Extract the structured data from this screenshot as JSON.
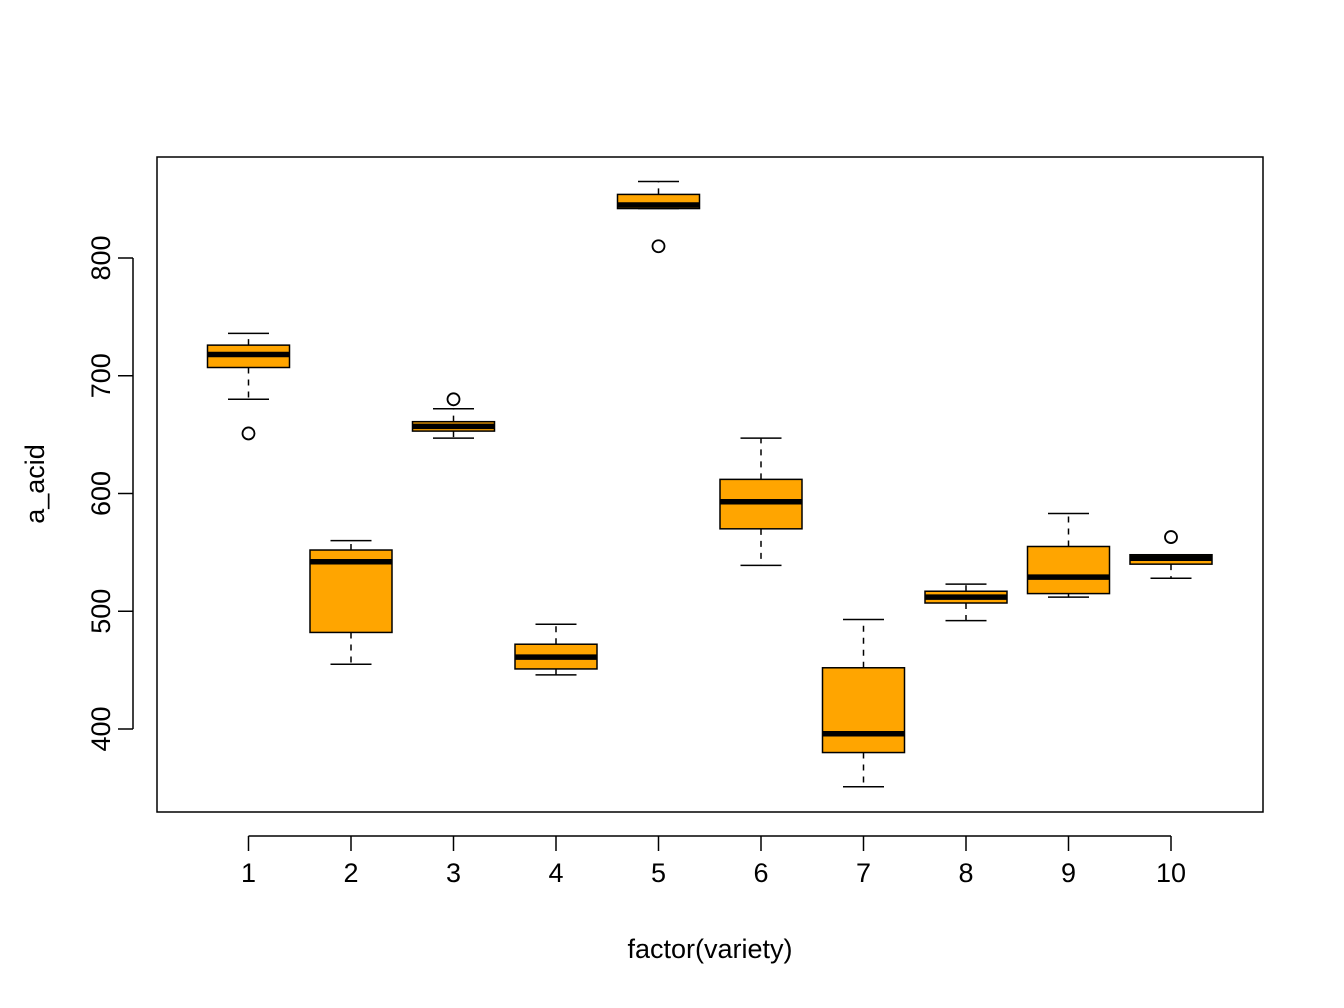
{
  "chart_data": {
    "type": "box",
    "title": "",
    "xlabel": "factor(variety)",
    "ylabel": "a_acid",
    "categories": [
      "1",
      "2",
      "3",
      "4",
      "5",
      "6",
      "7",
      "8",
      "9",
      "10"
    ],
    "yticks": [
      400,
      500,
      600,
      700,
      800
    ],
    "ylim": [
      330,
      885
    ],
    "fill_color": "#FFA500",
    "boxes": [
      {
        "category": "1",
        "whisker_low": 680,
        "q1": 707,
        "median": 718,
        "q3": 726,
        "whisker_high": 736,
        "outliers": [
          651
        ]
      },
      {
        "category": "2",
        "whisker_low": 455,
        "q1": 482,
        "median": 542,
        "q3": 552,
        "whisker_high": 560,
        "outliers": []
      },
      {
        "category": "3",
        "whisker_low": 647,
        "q1": 653,
        "median": 657,
        "q3": 661,
        "whisker_high": 672,
        "outliers": [
          680
        ]
      },
      {
        "category": "4",
        "whisker_low": 446,
        "q1": 451,
        "median": 461,
        "q3": 472,
        "whisker_high": 489,
        "outliers": []
      },
      {
        "category": "5",
        "whisker_low": 842,
        "q1": 842,
        "median": 845,
        "q3": 854,
        "whisker_high": 865,
        "outliers": [
          810
        ]
      },
      {
        "category": "6",
        "whisker_low": 539,
        "q1": 570,
        "median": 593,
        "q3": 612,
        "whisker_high": 647,
        "outliers": []
      },
      {
        "category": "7",
        "whisker_low": 351,
        "q1": 380,
        "median": 396,
        "q3": 452,
        "whisker_high": 493,
        "outliers": []
      },
      {
        "category": "8",
        "whisker_low": 492,
        "q1": 507,
        "median": 512,
        "q3": 517,
        "whisker_high": 523,
        "outliers": []
      },
      {
        "category": "9",
        "whisker_low": 512,
        "q1": 515,
        "median": 529,
        "q3": 555,
        "whisker_high": 583,
        "outliers": []
      },
      {
        "category": "10",
        "whisker_low": 528,
        "q1": 540,
        "median": 545,
        "q3": 548,
        "whisker_high": 548,
        "outliers": [
          563
        ]
      }
    ]
  }
}
